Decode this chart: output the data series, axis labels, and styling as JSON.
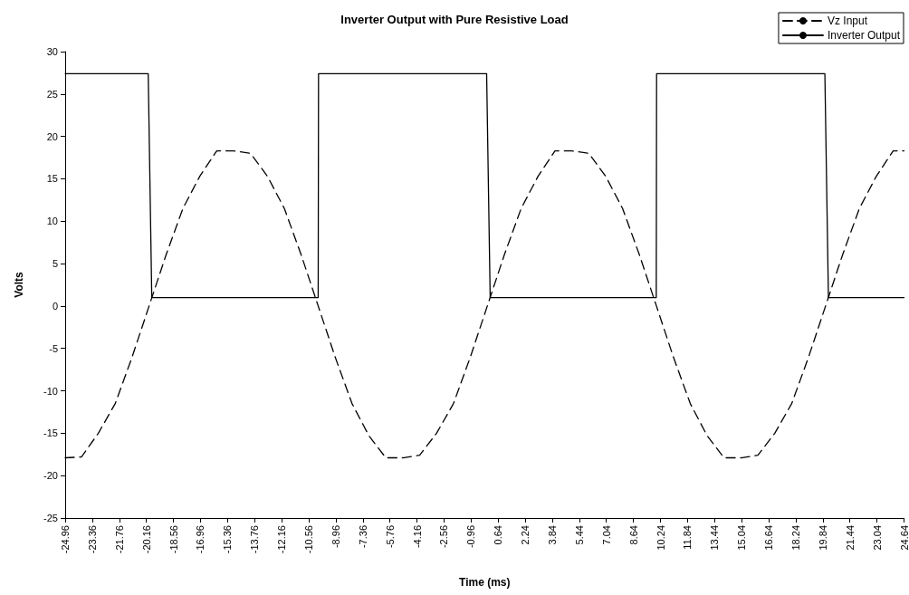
{
  "chart_data": {
    "type": "line",
    "title": "Inverter Output with Pure Resistive Load",
    "xlabel": "Time (ms)",
    "ylabel": "Volts",
    "xlim": [
      -24.96,
      24.64
    ],
    "xticks": [
      -24.96,
      -23.36,
      -21.76,
      -20.16,
      -18.56,
      -16.96,
      -15.36,
      -13.76,
      -12.16,
      -10.56,
      -8.96,
      -7.36,
      -5.76,
      -4.16,
      -2.56,
      -0.96,
      0.64,
      2.24,
      3.84,
      5.44,
      7.04,
      8.64,
      10.24,
      11.84,
      13.44,
      15.04,
      16.64,
      18.24,
      19.84,
      21.44,
      23.04,
      24.64
    ],
    "ylim": [
      -25,
      30
    ],
    "yticks": [
      -25,
      -20,
      -15,
      -10,
      -5,
      0,
      5,
      10,
      15,
      20,
      25,
      30
    ],
    "grid": false,
    "legend": "top right",
    "marker": "none",
    "series": [
      {
        "name": "Vz Input",
        "color": "#000000",
        "line_style": "dashed",
        "x": [
          -24.96,
          -24,
          -23,
          -22,
          -21,
          -20,
          -19,
          -18,
          -17,
          -16,
          -15,
          -14,
          -13,
          -12,
          -11,
          -10,
          -9,
          -8,
          -7,
          -6,
          -5,
          -4,
          -3,
          -2,
          -1,
          0,
          1,
          2,
          3,
          4,
          5,
          6,
          7,
          8,
          9,
          10,
          11,
          12,
          13,
          14,
          15,
          16,
          17,
          18,
          19,
          20,
          21,
          22,
          23,
          24,
          24.64
        ],
        "values": [
          -17.9,
          -17.8,
          -15,
          -11.5,
          -6,
          0,
          6,
          11.5,
          15.3,
          18.3,
          18.3,
          18,
          15.3,
          11.5,
          6,
          0,
          -6,
          -11.5,
          -15.3,
          -17.9,
          -17.9,
          -17.6,
          -15,
          -11.5,
          -6,
          0,
          6,
          11.5,
          15.3,
          18.3,
          18.3,
          18,
          15.3,
          11.5,
          6,
          0,
          -6,
          -11.5,
          -15.3,
          -17.9,
          -17.9,
          -17.6,
          -15,
          -11.5,
          -6,
          0,
          6,
          11.5,
          15.3,
          18.3,
          18.3
        ]
      },
      {
        "name": "Inverter Output",
        "color": "#000000",
        "line_style": "solid",
        "x": [
          -24.96,
          -20.05,
          -19.84,
          -10,
          -9.98,
          -0.04,
          0.17,
          9.99,
          10.01,
          19.96,
          20.17,
          24.64
        ],
        "values": [
          27.4,
          27.4,
          1,
          1,
          27.4,
          27.4,
          1,
          1,
          27.4,
          27.4,
          1,
          1
        ]
      }
    ]
  }
}
